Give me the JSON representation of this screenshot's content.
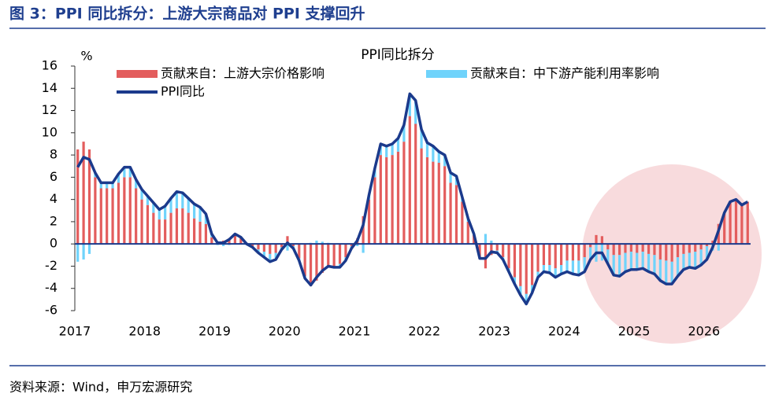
{
  "header": {
    "title": "图 3：PPI 同比拆分：上游大宗商品对 PPI 支撑回升"
  },
  "footer": {
    "source": "资料来源：Wind，申万宏源研究"
  },
  "chart_data": {
    "type": "bar",
    "stacked": true,
    "title": "PPI同比拆分",
    "y_label": "%",
    "categories": [
      "2017",
      null,
      null,
      null,
      null,
      null,
      null,
      null,
      null,
      null,
      null,
      null,
      "2018",
      null,
      null,
      null,
      null,
      null,
      null,
      null,
      null,
      null,
      null,
      null,
      "2019",
      null,
      null,
      null,
      null,
      null,
      null,
      null,
      null,
      null,
      null,
      null,
      "2020",
      null,
      null,
      null,
      null,
      null,
      null,
      null,
      null,
      null,
      null,
      null,
      "2021",
      null,
      null,
      null,
      null,
      null,
      null,
      null,
      null,
      null,
      null,
      null,
      "2022",
      null,
      null,
      null,
      null,
      null,
      null,
      null,
      null,
      null,
      null,
      null,
      "2023",
      null,
      null,
      null,
      null,
      null,
      null,
      null,
      null,
      null,
      null,
      null,
      "2024",
      null,
      null,
      null,
      null,
      null,
      null,
      null,
      null,
      null,
      null,
      null,
      "2025",
      null,
      null,
      null,
      null,
      null,
      null,
      null,
      null,
      null,
      null,
      null,
      "2026",
      null,
      null,
      null,
      null,
      null,
      null,
      null
    ],
    "series": [
      {
        "name": "贡献来自：上游大宗价格影响",
        "type": "bar",
        "color": "#e35d5d",
        "values": [
          8.5,
          9.2,
          8.5,
          6,
          5,
          5,
          5,
          5.5,
          6,
          6,
          5,
          4,
          3.5,
          2.8,
          2.2,
          2.2,
          2.8,
          3.2,
          3.2,
          2.8,
          2.3,
          2,
          1.8,
          0.6,
          0.2,
          0.3,
          0.5,
          0.8,
          0.6,
          0.1,
          -0.2,
          -0.5,
          -0.7,
          -0.9,
          -0.8,
          -0.3,
          0.7,
          -0.2,
          -1.3,
          -2.9,
          -3.8,
          -3.3,
          -2.6,
          -2.1,
          -2,
          -1.8,
          -1.2,
          -0.2,
          0.5,
          2.5,
          4,
          6,
          8,
          7.8,
          8,
          8.3,
          9.2,
          11.5,
          10.8,
          8.6,
          7.8,
          7.4,
          7.3,
          7,
          5.5,
          5.3,
          3.8,
          2,
          0.8,
          -1.2,
          -2.2,
          -1,
          -0.6,
          -1.2,
          -2.2,
          -3,
          -3.8,
          -4.5,
          -3.7,
          -2.5,
          -1.9,
          -1.9,
          -2.2,
          -1.9,
          -1.5,
          -1.5,
          -1.5,
          -1.2,
          -0.3,
          0.8,
          0.7,
          -0.5,
          -1,
          -1,
          -0.8,
          -0.7,
          -0.8,
          -0.7,
          -0.9,
          -1,
          -1.4,
          -1.5,
          -1.6,
          -1.2,
          -0.9,
          -0.8,
          -0.7,
          -0.5,
          -0.2,
          0.3,
          1.8,
          2.8,
          3.8,
          4,
          3.5,
          3.8
        ]
      },
      {
        "name": "贡献来自：中下游产能利用率影响",
        "type": "bar",
        "color": "#6fd3fb",
        "values": [
          -1.6,
          -1.4,
          -0.9,
          0.4,
          0.5,
          0.5,
          0.5,
          0.8,
          0.9,
          0.9,
          0.8,
          0.9,
          0.8,
          0.9,
          0.9,
          1.2,
          1.3,
          1.5,
          1.4,
          1.3,
          1.3,
          1.3,
          0.9,
          0.3,
          -0.1,
          -0.2,
          -0.1,
          0.1,
          0,
          -0.1,
          -0.1,
          -0.3,
          -0.5,
          -0.7,
          -0.6,
          -0.2,
          -0.6,
          -0.2,
          -0.2,
          -0.2,
          0.1,
          0.3,
          0.2,
          0.1,
          -0.1,
          -0.3,
          -0.3,
          -0.2,
          -0.2,
          -0.8,
          0.4,
          0.8,
          1,
          1,
          1,
          1.2,
          1.5,
          2,
          2.1,
          1.7,
          1.3,
          1.4,
          1,
          1,
          0.9,
          0.8,
          0.4,
          0.3,
          0.1,
          -0.1,
          0.9,
          0.3,
          -0.2,
          -0.2,
          -0.3,
          -0.6,
          -0.8,
          -0.9,
          -0.7,
          -0.5,
          -0.6,
          -0.7,
          -0.8,
          -0.8,
          -1,
          -1.2,
          -1.3,
          -1.3,
          -1.1,
          -1.6,
          -1.5,
          -1.3,
          -1.8,
          -1.9,
          -1.7,
          -1.6,
          -1.5,
          -1.5,
          -1.6,
          -1.7,
          -1.9,
          -2.1,
          -2,
          -1.7,
          -1.4,
          -1.3,
          -1.5,
          -1.4,
          -1.2,
          -0.6,
          -0.6,
          0,
          0,
          0,
          0,
          0
        ]
      },
      {
        "name": "PPI同比",
        "type": "line",
        "color": "#1b3a8c",
        "values": [
          6.9,
          7.8,
          7.6,
          6.4,
          5.5,
          5.5,
          5.5,
          6.3,
          6.9,
          6.9,
          5.8,
          4.9,
          4.3,
          3.7,
          3.1,
          3.4,
          4.1,
          4.7,
          4.6,
          4.1,
          3.6,
          3.3,
          2.7,
          0.9,
          0.1,
          0.1,
          0.4,
          0.9,
          0.6,
          0,
          -0.3,
          -0.8,
          -1.2,
          -1.6,
          -1.4,
          -0.5,
          0.1,
          -0.4,
          -1.5,
          -3.1,
          -3.7,
          -3,
          -2.4,
          -2,
          -2.1,
          -2.1,
          -1.5,
          -0.4,
          0.3,
          1.7,
          4.4,
          6.8,
          9,
          8.8,
          9,
          9.5,
          10.7,
          13.5,
          12.9,
          10.3,
          9.1,
          8.8,
          8.3,
          8,
          6.4,
          6.1,
          4.2,
          2.3,
          0.9,
          -1.3,
          -1.3,
          -0.7,
          -0.8,
          -1.4,
          -2.5,
          -3.6,
          -4.6,
          -5.4,
          -4.4,
          -3,
          -2.5,
          -2.6,
          -3,
          -2.7,
          -2.5,
          -2.7,
          -2.8,
          -2.5,
          -1.4,
          -0.8,
          -0.8,
          -1.8,
          -2.8,
          -2.9,
          -2.5,
          -2.3,
          -2.3,
          -2.2,
          -2.5,
          -2.7,
          -3.3,
          -3.6,
          -3.6,
          -2.9,
          -2.3,
          -2.1,
          -2.2,
          -1.9,
          -1.4,
          -0.3,
          1.2,
          2.8,
          3.8,
          4,
          3.5,
          3.8
        ]
      }
    ],
    "ylim": [
      -6,
      16
    ],
    "yticks": [
      -6,
      -4,
      -2,
      0,
      2,
      4,
      6,
      8,
      10,
      12,
      14,
      16
    ],
    "grid": false
  }
}
